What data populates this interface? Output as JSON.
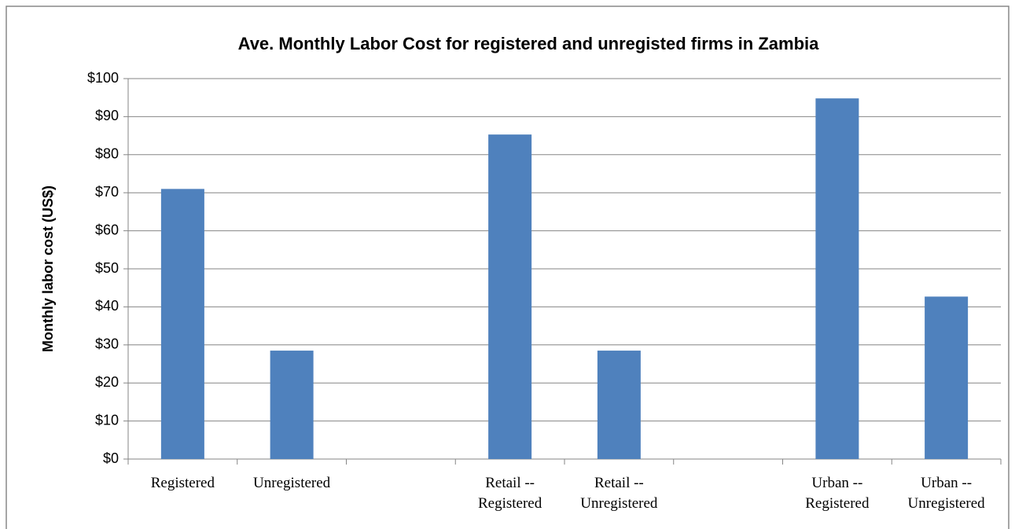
{
  "chart_data": {
    "type": "bar",
    "title": "Ave. Monthly Labor Cost for registered and unregisted firms in Zambia",
    "y_label": "Monthly labor cost (US$)",
    "categories": [
      "Registered",
      "Unregistered",
      null,
      "Retail -- Registered",
      "Retail -- Unregistered",
      null,
      "Urban -- Registered",
      "Urban -- Unregistered"
    ],
    "values": [
      71,
      28.5,
      null,
      85.3,
      28.5,
      null,
      94.8,
      42.7
    ],
    "color": "#4f81bd",
    "ylim": [
      0,
      100
    ],
    "yticks": [
      {
        "value": 0,
        "label": "$0"
      },
      {
        "value": 10,
        "label": "$10"
      },
      {
        "value": 20,
        "label": "$20"
      },
      {
        "value": 30,
        "label": "$30"
      },
      {
        "value": 40,
        "label": "$40"
      },
      {
        "value": 50,
        "label": "$50"
      },
      {
        "value": 60,
        "label": "$60"
      },
      {
        "value": 70,
        "label": "$70"
      },
      {
        "value": 80,
        "label": "$80"
      },
      {
        "value": 90,
        "label": "$90"
      },
      {
        "value": 100,
        "label": "$100"
      }
    ],
    "grid": true
  }
}
